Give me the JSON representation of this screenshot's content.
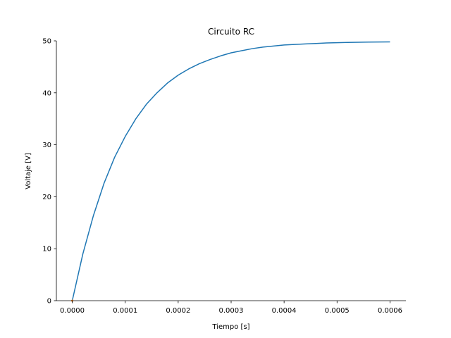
{
  "chart_data": {
    "type": "line",
    "title": "Circuito RC",
    "xlabel": "Tiempo [s]",
    "ylabel": "Voltaje [V]",
    "xlim": [
      -3e-05,
      0.00063
    ],
    "ylim": [
      0,
      50
    ],
    "xticks": [
      0.0,
      0.0001,
      0.0002,
      0.0003,
      0.0004,
      0.0005,
      0.0006
    ],
    "xtick_labels": [
      "0.0000",
      "0.0001",
      "0.0002",
      "0.0003",
      "0.0004",
      "0.0005",
      "0.0006"
    ],
    "yticks": [
      0,
      10,
      20,
      30,
      40,
      50
    ],
    "ytick_labels": [
      "0",
      "10",
      "20",
      "30",
      "40",
      "50"
    ],
    "grid": false,
    "spines": [
      "left",
      "bottom"
    ],
    "series": [
      {
        "color": "#1f77b4",
        "x": [
          0.0,
          2e-05,
          4e-05,
          6e-05,
          8e-05,
          0.0001,
          0.00012,
          0.00014,
          0.00016,
          0.00018,
          0.0002,
          0.00022,
          0.00024,
          0.00026,
          0.00028,
          0.0003,
          0.00032,
          0.00034,
          0.00036,
          0.00038,
          0.0004,
          0.00042,
          0.00044,
          0.00046,
          0.00048,
          0.0005,
          0.00052,
          0.00054,
          0.00056,
          0.00058,
          0.0006
        ],
        "y": [
          0.0,
          9.0,
          16.4,
          22.6,
          27.6,
          31.6,
          35.0,
          37.8,
          40.0,
          41.9,
          43.4,
          44.6,
          45.6,
          46.4,
          47.1,
          47.7,
          48.1,
          48.5,
          48.8,
          49.0,
          49.2,
          49.3,
          49.4,
          49.5,
          49.6,
          49.65,
          49.7,
          49.73,
          49.76,
          49.78,
          49.8
        ]
      },
      {
        "color": "#ff7f0e",
        "x": [
          0.0
        ],
        "y": [
          0.0
        ]
      }
    ]
  }
}
